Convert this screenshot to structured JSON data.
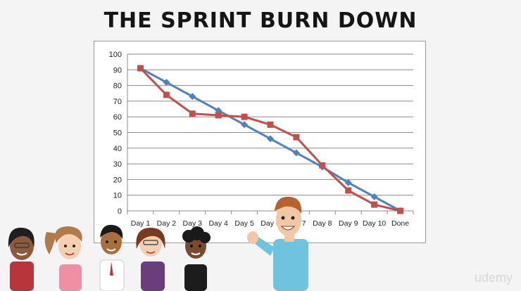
{
  "slide": {
    "title": "THE SPRINT BURN DOWN",
    "watermark": "udemy"
  },
  "colors": {
    "ideal": "#4f81bd",
    "actual": "#c0504d",
    "grid": "#8c8c8c"
  },
  "chart_data": {
    "type": "line",
    "title": "",
    "xlabel": "",
    "ylabel": "",
    "categories": [
      "Day 1",
      "Day 2",
      "Day 3",
      "Day 4",
      "Day 5",
      "Day 6",
      "Day 7",
      "Day 8",
      "Day 9",
      "Day 10",
      "Done"
    ],
    "ylim": [
      0,
      100
    ],
    "yticks": [
      0,
      10,
      20,
      30,
      40,
      50,
      60,
      70,
      80,
      90,
      100
    ],
    "grid": true,
    "legend": "none",
    "series": [
      {
        "color": "#4f81bd",
        "marker": "diamond",
        "values": [
          91,
          82,
          73,
          64,
          55,
          46,
          37,
          28,
          18,
          9,
          0
        ]
      },
      {
        "color": "#c0504d",
        "marker": "square",
        "values": [
          91,
          74,
          62,
          61,
          60,
          55,
          47,
          29,
          13,
          4,
          0
        ]
      }
    ]
  }
}
